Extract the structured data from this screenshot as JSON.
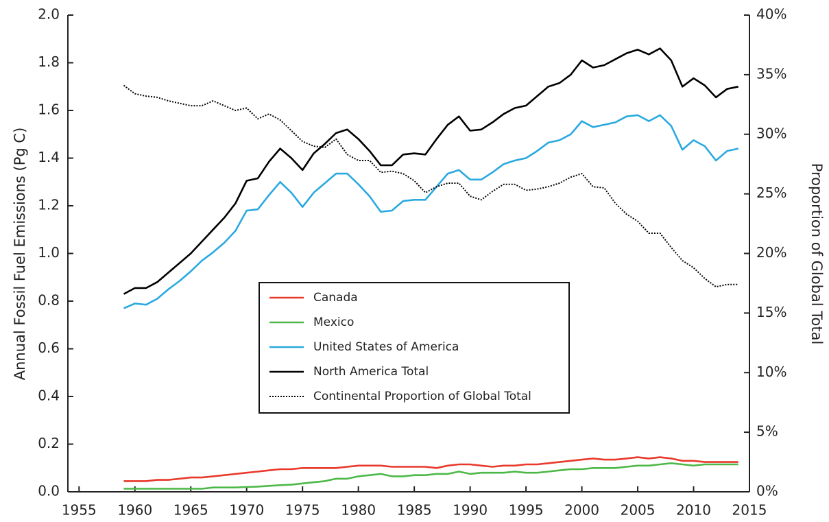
{
  "chart_data": {
    "type": "line",
    "y_label": "Annual Fossil Fuel Emissions (Pg C)",
    "y2_label": "Proportion of Global Total",
    "x": [
      1959,
      1960,
      1961,
      1962,
      1963,
      1964,
      1965,
      1966,
      1967,
      1968,
      1969,
      1970,
      1971,
      1972,
      1973,
      1974,
      1975,
      1976,
      1977,
      1978,
      1979,
      1980,
      1981,
      1982,
      1983,
      1984,
      1985,
      1986,
      1987,
      1988,
      1989,
      1990,
      1991,
      1992,
      1993,
      1994,
      1995,
      1996,
      1997,
      1998,
      1999,
      2000,
      2001,
      2002,
      2003,
      2004,
      2005,
      2006,
      2007,
      2008,
      2009,
      2010,
      2011,
      2012,
      2013,
      2014
    ],
    "xlim": [
      1954,
      2015
    ],
    "xticks": [
      1955,
      1960,
      1965,
      1970,
      1975,
      1980,
      1985,
      1990,
      1995,
      2000,
      2005,
      2010,
      2015
    ],
    "ylim": [
      0,
      2
    ],
    "yticks": [
      {
        "value": 0,
        "label": "0.0"
      },
      {
        "value": 0.2,
        "label": "0.2"
      },
      {
        "value": 0.4,
        "label": "0.4"
      },
      {
        "value": 0.6,
        "label": "0.6"
      },
      {
        "value": 0.8,
        "label": "0.8"
      },
      {
        "value": 1,
        "label": "1.0"
      },
      {
        "value": 1.2,
        "label": "1.2"
      },
      {
        "value": 1.4,
        "label": "1.4"
      },
      {
        "value": 1.6,
        "label": "1.6"
      },
      {
        "value": 1.8,
        "label": "1.8"
      },
      {
        "value": 2,
        "label": "2.0"
      }
    ],
    "y2lim": [
      0,
      40
    ],
    "y2ticks": [
      {
        "value": 0,
        "label": "0%"
      },
      {
        "value": 5,
        "label": "5%"
      },
      {
        "value": 10,
        "label": "10%"
      },
      {
        "value": 15,
        "label": "15%"
      },
      {
        "value": 20,
        "label": "20%"
      },
      {
        "value": 25,
        "label": "25%"
      },
      {
        "value": 30,
        "label": "30%"
      },
      {
        "value": 35,
        "label": "35%"
      },
      {
        "value": 40,
        "label": "40%"
      }
    ],
    "series": [
      {
        "name": "Canada",
        "color": "#e8392b",
        "values": [
          0.045,
          0.045,
          0.045,
          0.05,
          0.05,
          0.055,
          0.06,
          0.06,
          0.065,
          0.07,
          0.075,
          0.08,
          0.085,
          0.09,
          0.095,
          0.095,
          0.1,
          0.1,
          0.1,
          0.1,
          0.105,
          0.11,
          0.11,
          0.11,
          0.105,
          0.105,
          0.105,
          0.105,
          0.1,
          0.11,
          0.115,
          0.115,
          0.11,
          0.105,
          0.11,
          0.11,
          0.115,
          0.115,
          0.12,
          0.125,
          0.13,
          0.135,
          0.14,
          0.135,
          0.135,
          0.14,
          0.145,
          0.14,
          0.145,
          0.14,
          0.13,
          0.13,
          0.125,
          0.125,
          0.125,
          0.125
        ]
      },
      {
        "name": "Mexico",
        "color": "#4cb847",
        "values": [
          0.013,
          0.013,
          0.013,
          0.013,
          0.013,
          0.013,
          0.013,
          0.013,
          0.018,
          0.018,
          0.018,
          0.02,
          0.022,
          0.025,
          0.028,
          0.03,
          0.035,
          0.04,
          0.045,
          0.055,
          0.055,
          0.065,
          0.07,
          0.075,
          0.065,
          0.065,
          0.07,
          0.07,
          0.075,
          0.075,
          0.085,
          0.075,
          0.08,
          0.08,
          0.08,
          0.085,
          0.08,
          0.08,
          0.085,
          0.09,
          0.095,
          0.095,
          0.1,
          0.1,
          0.1,
          0.105,
          0.11,
          0.11,
          0.115,
          0.12,
          0.115,
          0.11,
          0.115,
          0.115,
          0.115,
          0.115
        ]
      },
      {
        "name": "United States of America",
        "color": "#29a9e0",
        "values": [
          0.77,
          0.79,
          0.785,
          0.81,
          0.85,
          0.885,
          0.925,
          0.97,
          1.005,
          1.045,
          1.095,
          1.18,
          1.185,
          1.245,
          1.3,
          1.255,
          1.195,
          1.255,
          1.295,
          1.335,
          1.335,
          1.29,
          1.24,
          1.175,
          1.18,
          1.22,
          1.225,
          1.225,
          1.28,
          1.335,
          1.35,
          1.31,
          1.31,
          1.34,
          1.375,
          1.39,
          1.4,
          1.43,
          1.465,
          1.475,
          1.5,
          1.555,
          1.53,
          1.54,
          1.55,
          1.575,
          1.58,
          1.555,
          1.58,
          1.535,
          1.435,
          1.475,
          1.45,
          1.39,
          1.43,
          1.44
        ]
      },
      {
        "name": "North America Total",
        "color": "#000000",
        "values": [
          0.83,
          0.855,
          0.855,
          0.88,
          0.92,
          0.96,
          1.0,
          1.05,
          1.1,
          1.15,
          1.21,
          1.305,
          1.315,
          1.385,
          1.44,
          1.4,
          1.35,
          1.42,
          1.46,
          1.505,
          1.52,
          1.48,
          1.43,
          1.37,
          1.37,
          1.415,
          1.42,
          1.415,
          1.48,
          1.54,
          1.575,
          1.515,
          1.52,
          1.55,
          1.585,
          1.61,
          1.62,
          1.66,
          1.7,
          1.715,
          1.75,
          1.81,
          1.78,
          1.79,
          1.815,
          1.84,
          1.855,
          1.835,
          1.86,
          1.81,
          1.7,
          1.735,
          1.705,
          1.655,
          1.69,
          1.7
        ]
      },
      {
        "name": "Continental Proportion of Global Total",
        "color": "#000000",
        "dash": "dotted",
        "axis": "y2",
        "values": [
          34.1,
          33.4,
          33.2,
          33.1,
          32.8,
          32.6,
          32.4,
          32.4,
          32.8,
          32.4,
          32.0,
          32.2,
          31.3,
          31.7,
          31.2,
          30.3,
          29.4,
          29.0,
          28.9,
          29.6,
          28.3,
          27.8,
          27.8,
          26.8,
          26.9,
          26.7,
          26.1,
          25.1,
          25.6,
          25.9,
          25.9,
          24.8,
          24.5,
          25.2,
          25.8,
          25.8,
          25.3,
          25.4,
          25.6,
          25.9,
          26.4,
          26.7,
          25.6,
          25.5,
          24.2,
          23.3,
          22.7,
          21.7,
          21.7,
          20.5,
          19.4,
          18.8,
          17.9,
          17.2,
          17.4,
          17.4
        ]
      }
    ]
  }
}
